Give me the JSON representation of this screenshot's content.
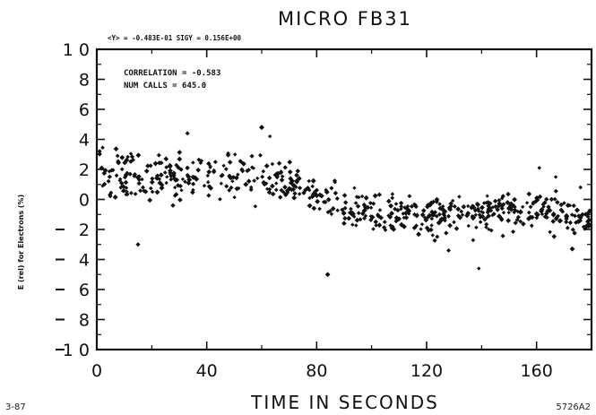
{
  "chart_data": {
    "type": "scatter",
    "title": "MICRO FB31",
    "stats_line": "<Y> = -0.483E-01 SIGY = 0.156E+00",
    "annotations": [
      "CORRELATION = -0.583",
      "NUM CALLS = 645.0"
    ],
    "xlabel": "TIME IN SECONDS",
    "ylabel": "E (rel) for Electrons (%)",
    "xlim": [
      0,
      180
    ],
    "ylim": [
      -10,
      10
    ],
    "x_ticks": [
      "0",
      "40",
      "80",
      "120",
      "160"
    ],
    "x_tick_values": [
      0,
      40,
      80,
      120,
      160
    ],
    "y_ticks": [
      "1 0",
      "8",
      "6",
      "4",
      "2",
      "0",
      "2",
      "4",
      "6",
      "8",
      "1 0"
    ],
    "y_tick_values": [
      10,
      8,
      6,
      4,
      2,
      0,
      -2,
      -4,
      -6,
      -8,
      -10
    ],
    "footer_left": "3-87",
    "footer_right": "5726A2",
    "point_count": 645,
    "series": [
      {
        "values_trend": [
          [
            0,
            1.8
          ],
          [
            20,
            1.4
          ],
          [
            40,
            1.5
          ],
          [
            60,
            1.6
          ],
          [
            70,
            0.8
          ],
          [
            80,
            0.2
          ],
          [
            90,
            -0.6
          ],
          [
            100,
            -1.0
          ],
          [
            120,
            -1.2
          ],
          [
            140,
            -1.0
          ],
          [
            160,
            -0.6
          ],
          [
            180,
            -1.2
          ]
        ],
        "outliers": [
          [
            1,
            3.2
          ],
          [
            15,
            -3.0
          ],
          [
            33,
            4.4
          ],
          [
            60,
            4.8
          ],
          [
            63,
            4.2
          ],
          [
            84,
            -5.0
          ],
          [
            128,
            -3.4
          ],
          [
            139,
            -4.6
          ],
          [
            161,
            2.1
          ],
          [
            167,
            1.5
          ],
          [
            173,
            -3.3
          ],
          [
            176,
            0.8
          ]
        ]
      }
    ],
    "grid": false,
    "colors": {
      "ink": "#111111",
      "background": "#ffffff"
    }
  }
}
